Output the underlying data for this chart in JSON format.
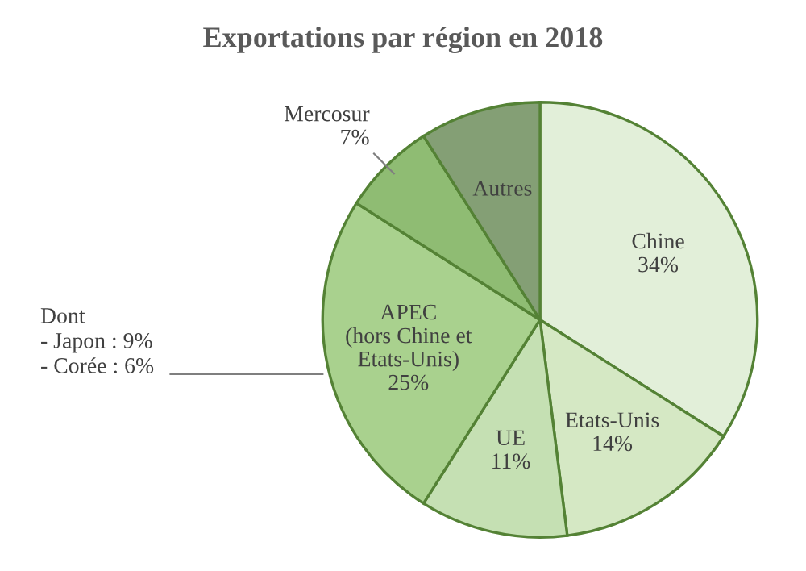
{
  "chart_data": {
    "type": "pie",
    "title": "Exportations par région en 2018",
    "categories": [
      "Chine",
      "Etats-Unis",
      "UE",
      "APEC\n(hors Chine et\nEtats-Unis)",
      "Mercosur",
      "Autres"
    ],
    "values": [
      34,
      14,
      11,
      25,
      7,
      9
    ],
    "value_labels": [
      "34%",
      "14%",
      "11%",
      "25%",
      "7%",
      null
    ],
    "colors": [
      "#e2efd9",
      "#d5e8c4",
      "#c5e0b3",
      "#a9d18e",
      "#8fbc73",
      "#849f75"
    ],
    "annotations": [
      "Dont\n- Japon : 9%\n- Corée : 6%"
    ]
  }
}
